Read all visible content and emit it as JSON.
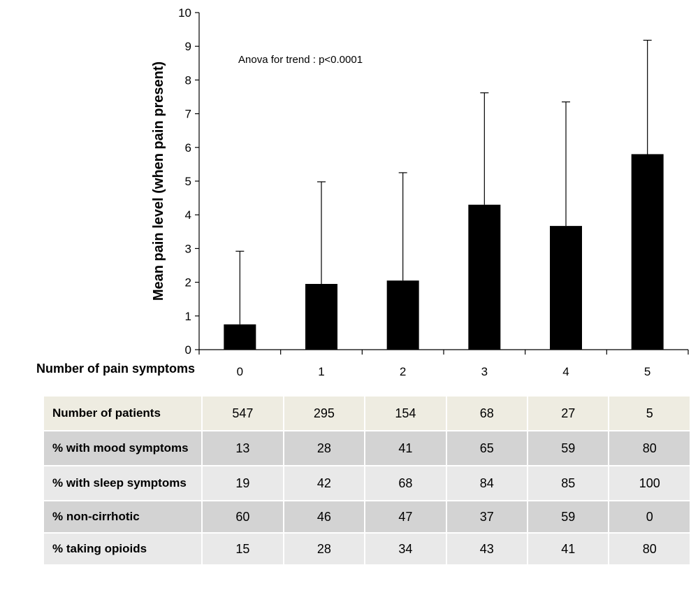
{
  "chart_data": {
    "type": "bar",
    "categories": [
      "0",
      "1",
      "2",
      "3",
      "4",
      "5"
    ],
    "values": [
      0.75,
      1.95,
      2.05,
      4.3,
      3.67,
      5.8
    ],
    "error_upper": [
      2.92,
      4.98,
      5.25,
      7.62,
      7.35,
      9.18
    ],
    "ylim": [
      0,
      10
    ],
    "yticks": [
      0,
      1,
      2,
      3,
      4,
      5,
      6,
      7,
      8,
      9,
      10
    ],
    "xlabel": "Number of pain symptoms",
    "ylabel": "Mean pain level (when pain present)",
    "annotation": "Anova for trend : p<0.0001",
    "bar_color": "#000000",
    "grid": false
  },
  "table": {
    "rows": [
      {
        "label": "Number of patients",
        "values": [
          "547",
          "295",
          "154",
          "68",
          "27",
          "5"
        ]
      },
      {
        "label": "% with mood symptoms",
        "values": [
          "13",
          "28",
          "41",
          "65",
          "59",
          "80"
        ]
      },
      {
        "label": "% with sleep symptoms",
        "values": [
          "19",
          "42",
          "68",
          "84",
          "85",
          "100"
        ]
      },
      {
        "label": "% non-cirrhotic",
        "values": [
          "60",
          "46",
          "47",
          "37",
          "59",
          "0"
        ]
      },
      {
        "label": "% taking opioids",
        "values": [
          "15",
          "28",
          "34",
          "43",
          "41",
          "80"
        ]
      }
    ]
  }
}
